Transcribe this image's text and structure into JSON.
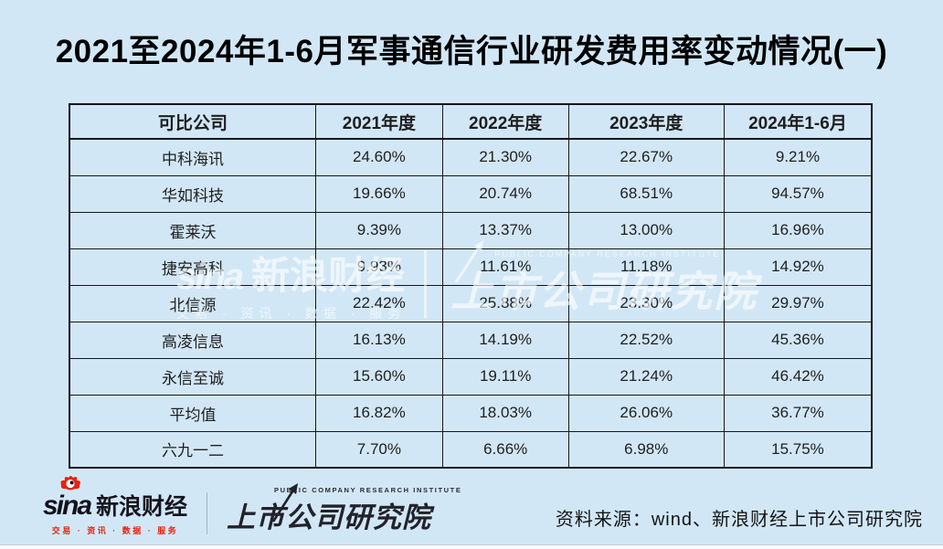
{
  "page": {
    "title": "2021至2024年1-6月军事通信行业研发费用率变动情况(一)",
    "background_color": "#d2e7f6"
  },
  "table": {
    "headers": [
      "可比公司",
      "2021年度",
      "2022年度",
      "2023年度",
      "2024年1-6月"
    ],
    "rows": [
      [
        "中科海讯",
        "24.60%",
        "21.30%",
        "22.67%",
        "9.21%"
      ],
      [
        "华如科技",
        "19.66%",
        "20.74%",
        "68.51%",
        "94.57%"
      ],
      [
        "霍莱沃",
        "9.39%",
        "13.37%",
        "13.00%",
        "16.96%"
      ],
      [
        "捷安高科",
        "9.93%",
        "11.61%",
        "11.18%",
        "14.92%"
      ],
      [
        "北信源",
        "22.42%",
        "25.88%",
        "23.30%",
        "29.97%"
      ],
      [
        "高凌信息",
        "16.13%",
        "14.19%",
        "22.52%",
        "45.36%"
      ],
      [
        "永信至诚",
        "15.60%",
        "19.11%",
        "21.24%",
        "46.42%"
      ],
      [
        "平均值",
        "16.82%",
        "18.03%",
        "26.06%",
        "36.77%"
      ],
      [
        "六九一二",
        "7.70%",
        "6.66%",
        "6.98%",
        "15.75%"
      ]
    ]
  },
  "watermark": {
    "sina_brand": "sina",
    "sina_cn": "新浪财经",
    "sina_tagline": "交易 · 资讯 · 数据 · 服务",
    "institute_en": "PUBLIC COMPANY RESEARCH INSTITUTE",
    "institute_cn": "上市公司研究院"
  },
  "footer": {
    "sina_logo": {
      "brand": "sina",
      "name_cn": "新浪财经",
      "tagline": "交易 · 资讯 · 数据 · 服务"
    },
    "institute_logo": {
      "name_en": "PUBLIC COMPANY RESEARCH INSTITUTE",
      "name_cn": "上市公司研究院"
    },
    "source_text": "资料来源：wind、新浪财经上市公司研究院"
  },
  "colors": {
    "background": "#d2e7f6",
    "table_border": "#15151f",
    "text": "#1e1e1e",
    "sina_red": "#e8220e",
    "logo_dark": "#15151f",
    "watermark_white": "rgba(255,255,255,0.62)"
  },
  "chart_data": {
    "type": "table",
    "title": "2021至2024年1-6月军事通信行业研发费用率变动情况(一)",
    "unit": "%",
    "columns": [
      "可比公司",
      "2021年度",
      "2022年度",
      "2023年度",
      "2024年1-6月"
    ],
    "categories": [
      "中科海讯",
      "华如科技",
      "霍莱沃",
      "捷安高科",
      "北信源",
      "高凌信息",
      "永信至诚",
      "平均值",
      "六九一二"
    ],
    "series": [
      {
        "name": "2021年度",
        "values": [
          24.6,
          19.66,
          9.39,
          9.93,
          22.42,
          16.13,
          15.6,
          16.82,
          7.7
        ]
      },
      {
        "name": "2022年度",
        "values": [
          21.3,
          20.74,
          13.37,
          11.61,
          25.88,
          14.19,
          19.11,
          18.03,
          6.66
        ]
      },
      {
        "name": "2023年度",
        "values": [
          22.67,
          68.51,
          13.0,
          11.18,
          23.3,
          22.52,
          21.24,
          26.06,
          6.98
        ]
      },
      {
        "name": "2024年1-6月",
        "values": [
          9.21,
          94.57,
          16.96,
          14.92,
          29.97,
          45.36,
          46.42,
          36.77,
          15.75
        ]
      }
    ]
  }
}
